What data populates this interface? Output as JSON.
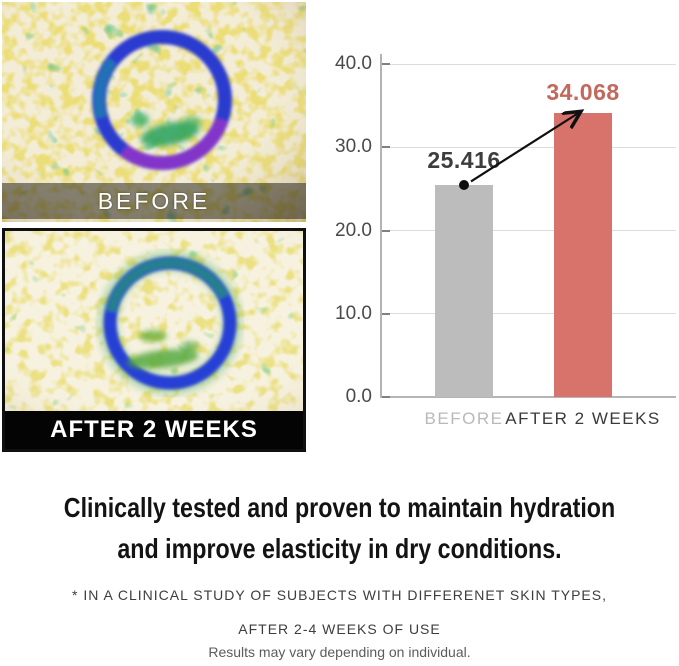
{
  "photo_panel": {
    "before": {
      "label": "BEFORE"
    },
    "after": {
      "label": "AFTER 2 WEEKS"
    }
  },
  "chart_data": {
    "type": "bar",
    "categories": [
      "BEFORE",
      "AFTER 2 WEEKS"
    ],
    "values": [
      25.416,
      34.068
    ],
    "value_labels": [
      "25.416",
      "34.068"
    ],
    "yticks": [
      0,
      10,
      20,
      30,
      40
    ],
    "ytick_labels": [
      "0.0",
      "10.0",
      "20.0",
      "30.0",
      "40.0"
    ],
    "ylim": [
      0,
      40
    ],
    "grid": true,
    "legend": "none",
    "bar_colors": [
      "#bcbcbc",
      "#d7736a"
    ],
    "category_colors": [
      "#b9b9b9",
      "#3a3a3a"
    ],
    "value_label_colors": [
      "#3d3d3d",
      "#c2685c"
    ],
    "annotation": "arrow from top of BEFORE bar (black dot) to top of AFTER 2 WEEKS bar"
  },
  "headline": {
    "line1": "Clinically tested and proven to maintain hydration",
    "line2": "and improve elasticity in dry conditions."
  },
  "disclaimer": {
    "line1": "* IN A CLINICAL STUDY OF SUBJECTS WITH DIFFERENET SKIN TYPES,",
    "line2": "AFTER 2-4 WEEKS OF USE"
  },
  "fineprint": "Results may vary depending on individual."
}
